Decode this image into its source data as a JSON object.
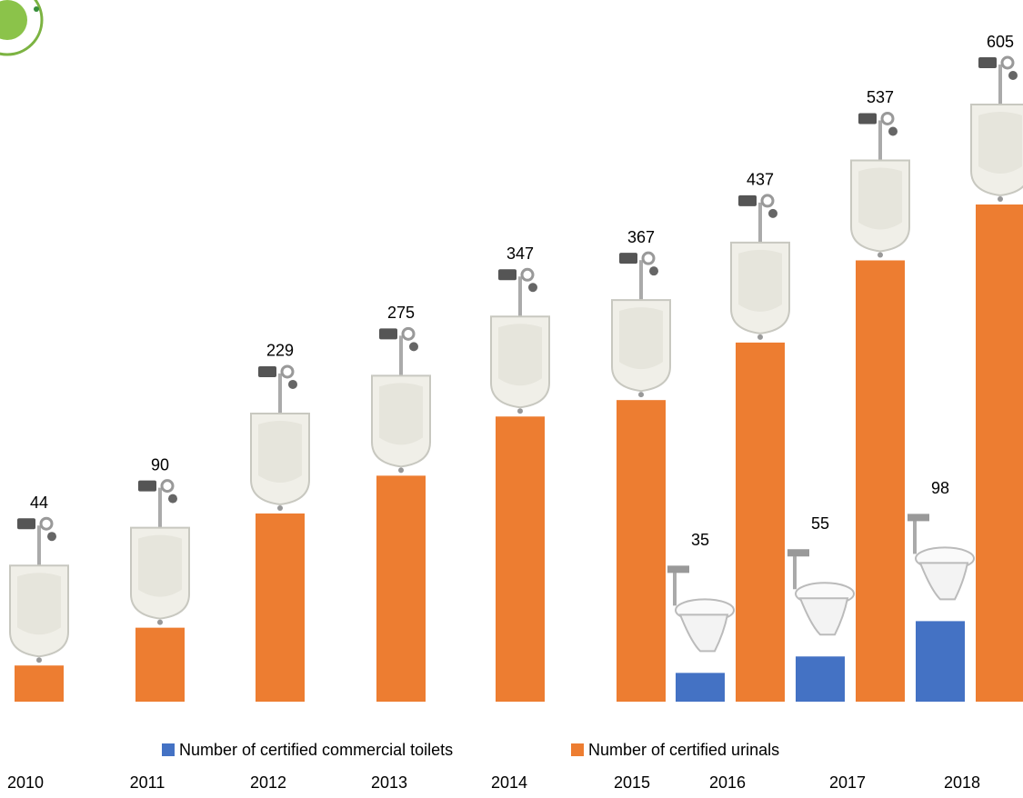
{
  "chart_data": {
    "type": "bar",
    "categories": [
      "2010",
      "2011",
      "2012",
      "2013",
      "2014",
      "2015",
      "2016",
      "2017",
      "2018"
    ],
    "series": [
      {
        "name": "Number of certified commercial toilets",
        "color": "#4472c4",
        "values": [
          null,
          null,
          null,
          null,
          null,
          null,
          35,
          55,
          98
        ]
      },
      {
        "name": "Number of certified urinals",
        "color": "#ed7d31",
        "values": [
          44,
          90,
          229,
          275,
          347,
          367,
          437,
          537,
          605
        ]
      }
    ]
  }
}
